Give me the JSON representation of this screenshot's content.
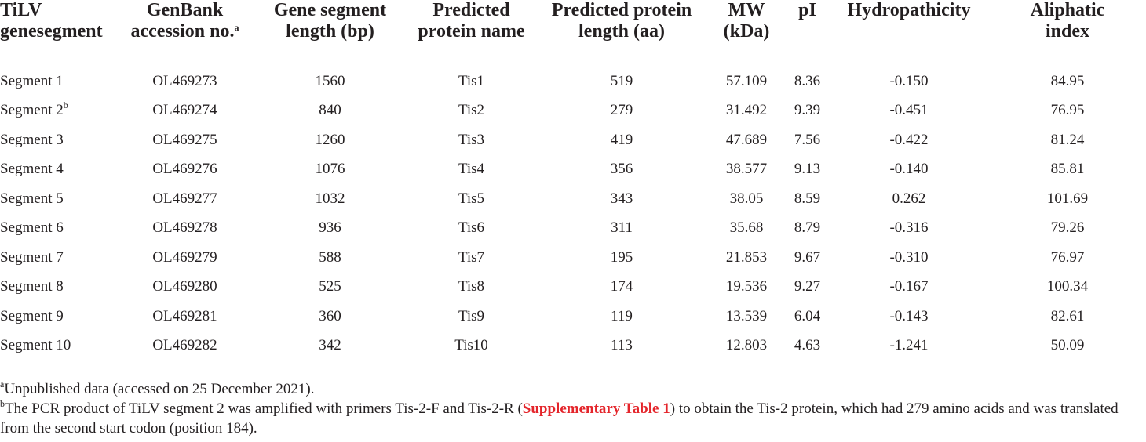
{
  "headers": [
    {
      "line1": "TiLV",
      "line2": "genesegment",
      "sup": ""
    },
    {
      "line1": "GenBank",
      "line2": "accession no.",
      "sup": "a"
    },
    {
      "line1": "Gene segment",
      "line2": "length (bp)",
      "sup": ""
    },
    {
      "line1": "Predicted",
      "line2": "protein name",
      "sup": ""
    },
    {
      "line1": "Predicted protein",
      "line2": "length (aa)",
      "sup": ""
    },
    {
      "line1": "MW",
      "line2": "(kDa)",
      "sup": ""
    },
    {
      "line1": "pI",
      "line2": "",
      "sup": ""
    },
    {
      "line1": "Hydropathicity",
      "line2": "",
      "sup": ""
    },
    {
      "line1": "Aliphatic",
      "line2": "index",
      "sup": ""
    }
  ],
  "rows": [
    {
      "segment": "Segment 1",
      "sup": "",
      "accession": "OL469273",
      "length_bp": "1560",
      "protein": "Tis1",
      "length_aa": "519",
      "mw": "57.109",
      "pi": "8.36",
      "hydro": "-0.150",
      "aliphatic": "84.95"
    },
    {
      "segment": "Segment 2",
      "sup": "b",
      "accession": "OL469274",
      "length_bp": "840",
      "protein": "Tis2",
      "length_aa": "279",
      "mw": "31.492",
      "pi": "9.39",
      "hydro": "-0.451",
      "aliphatic": "76.95"
    },
    {
      "segment": "Segment 3",
      "sup": "",
      "accession": "OL469275",
      "length_bp": "1260",
      "protein": "Tis3",
      "length_aa": "419",
      "mw": "47.689",
      "pi": "7.56",
      "hydro": "-0.422",
      "aliphatic": "81.24"
    },
    {
      "segment": "Segment 4",
      "sup": "",
      "accession": "OL469276",
      "length_bp": "1076",
      "protein": "Tis4",
      "length_aa": "356",
      "mw": "38.577",
      "pi": "9.13",
      "hydro": "-0.140",
      "aliphatic": "85.81"
    },
    {
      "segment": "Segment 5",
      "sup": "",
      "accession": "OL469277",
      "length_bp": "1032",
      "protein": "Tis5",
      "length_aa": "343",
      "mw": "38.05",
      "pi": "8.59",
      "hydro": "0.262",
      "aliphatic": "101.69"
    },
    {
      "segment": "Segment 6",
      "sup": "",
      "accession": "OL469278",
      "length_bp": "936",
      "protein": "Tis6",
      "length_aa": "311",
      "mw": "35.68",
      "pi": "8.79",
      "hydro": "-0.316",
      "aliphatic": "79.26"
    },
    {
      "segment": "Segment 7",
      "sup": "",
      "accession": "OL469279",
      "length_bp": "588",
      "protein": "Tis7",
      "length_aa": "195",
      "mw": "21.853",
      "pi": "9.67",
      "hydro": "-0.310",
      "aliphatic": "76.97"
    },
    {
      "segment": "Segment 8",
      "sup": "",
      "accession": "OL469280",
      "length_bp": "525",
      "protein": "Tis8",
      "length_aa": "174",
      "mw": "19.536",
      "pi": "9.27",
      "hydro": "-0.167",
      "aliphatic": "100.34"
    },
    {
      "segment": "Segment 9",
      "sup": "",
      "accession": "OL469281",
      "length_bp": "360",
      "protein": "Tis9",
      "length_aa": "119",
      "mw": "13.539",
      "pi": "6.04",
      "hydro": "-0.143",
      "aliphatic": "82.61"
    },
    {
      "segment": "Segment 10",
      "sup": "",
      "accession": "OL469282",
      "length_bp": "342",
      "protein": "Tis10",
      "length_aa": "113",
      "mw": "12.803",
      "pi": "4.63",
      "hydro": "-1.241",
      "aliphatic": "50.09"
    }
  ],
  "footnotes": {
    "a": {
      "mark": "a",
      "text": "Unpublished data (accessed on 25 December 2021)."
    },
    "b": {
      "mark": "b",
      "before": "The PCR product of TiLV segment 2 was amplified with primers Tis-2-F and Tis-2-R (",
      "link": "Supplementary Table 1",
      "after": ") to obtain the Tis-2 protein, which had 279 amino acids and was translated from the second start codon (position 184)."
    }
  },
  "colors": {
    "text": "#231f20",
    "link": "#e4252b",
    "rule": "#b5b5b5"
  }
}
